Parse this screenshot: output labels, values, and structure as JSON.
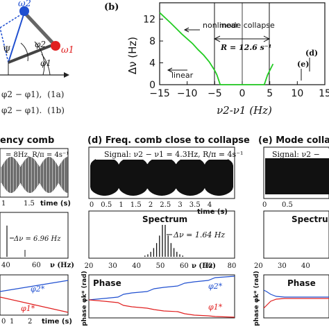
{
  "panel_a": {
    "omega2": "ω2",
    "omega1": "ω1",
    "phi2": "φ2",
    "phi1": "φ1",
    "psi": "Ψ",
    "eq1_text": "φ2 − φ1),",
    "eq1_tag": "(1a)",
    "eq2_text": "φ2 − φ1).",
    "eq2_tag": "(1b)",
    "colors": {
      "omega2": "#1f4fd0",
      "omega1": "#e02020"
    }
  },
  "panel_b": {
    "label": "(b)",
    "ylabel": "Δν (Hz)",
    "xlabel": "ν2-ν1 (Hz)",
    "annotations": {
      "nonlinear": "nonlinear",
      "mode_collapse": "mode   collapse",
      "linear": "linear",
      "R": "R = 12.6 s⁻¹",
      "d": "(d)",
      "e": "(e)"
    },
    "chart_data": {
      "type": "line",
      "xlabel": "ν2-ν1 (Hz)",
      "ylabel": "Δν (Hz)",
      "xlim": [
        -15,
        15
      ],
      "ylim": [
        0,
        14
      ],
      "xticks": [
        -15,
        -10,
        -5,
        0,
        5,
        10,
        15
      ],
      "yticks": [
        0,
        4,
        8,
        12
      ],
      "series": [
        {
          "color": "#22cc22",
          "x": [
            -15,
            -13,
            -11,
            -10,
            -9,
            -8,
            -7,
            -6,
            -5,
            -4.6,
            -4.2,
            -4.0,
            4.0,
            4.2,
            4.6,
            5.0,
            5.6
          ],
          "y": [
            13.2,
            11.3,
            9.3,
            8.4,
            7.5,
            6.4,
            5.4,
            4.2,
            2.6,
            1.8,
            0.6,
            0,
            0,
            0.6,
            1.8,
            2.6,
            3.8
          ]
        }
      ]
    }
  },
  "panel_c": {
    "title": "ency comb",
    "signal": "= 8Hz, R/π = 4s⁻¹",
    "time_ticks": [
      "1",
      "1.5"
    ],
    "time_label": "time (s)",
    "delta_nu": "Δν = 6.96 Hz",
    "freq_ticks": [
      "40",
      "60"
    ],
    "freq_label": "ν (Hz)",
    "phase_ticks": [
      "0",
      "1",
      "2"
    ],
    "phase_time_label": "time (s)",
    "phi2": "φ2*",
    "phi1": "φ1*"
  },
  "panel_d": {
    "title": "(d) Freq. comb close to collapse",
    "signal": "Signal: ν2 − ν1 = 4.3Hz, R/π = 4s⁻¹",
    "time_ticks": [
      "0",
      "0.5",
      "1",
      "1.5",
      "2",
      "2.5",
      "3",
      "3.5",
      "4"
    ],
    "time_label": "time (s)",
    "spectrum": "Spectrum",
    "delta_nu": "Δν = 1.64 Hz",
    "freq_ticks": [
      "20",
      "30",
      "40",
      "50",
      "60",
      "70",
      "80"
    ],
    "freq_label": "ν (Hz)",
    "phase": "Phase",
    "phase_ylabel": "phase φk* (rad)",
    "phi2": "φ2*",
    "phi1": "φ1*"
  },
  "panel_e": {
    "title": "(e)  Mode colla",
    "signal": "Signal: ν2 −",
    "time_ticks": [
      "0",
      "0.5"
    ],
    "spectrum": "Spectrum",
    "freq_ticks": [
      "20",
      "30",
      "40"
    ],
    "phase": "Phase",
    "phase_ylabel": "phase φk* (rad)"
  }
}
